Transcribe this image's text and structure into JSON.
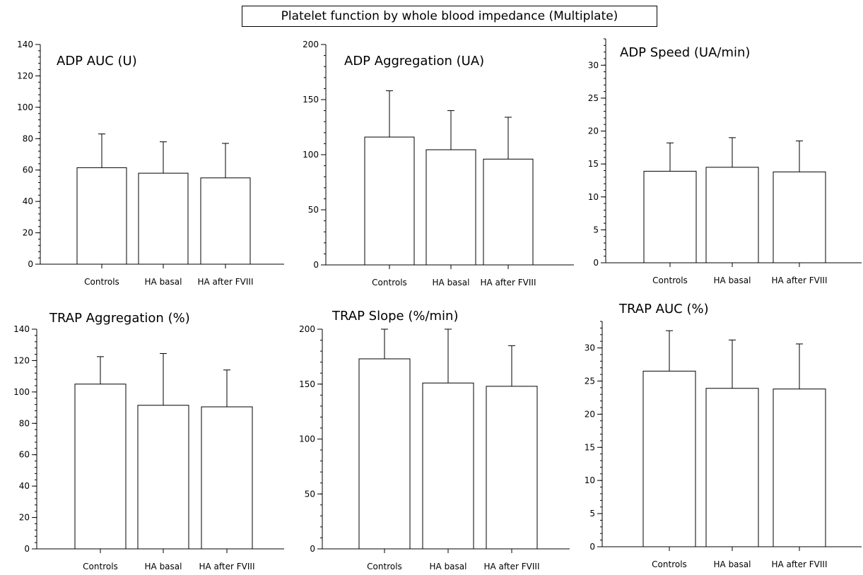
{
  "figure_title": "Platelet function by whole blood impedance (Multiplate)",
  "chart_data": [
    {
      "type": "bar",
      "title": "ADP AUC (U)",
      "categories": [
        "Controls",
        "HA basal",
        "HA after FVIII"
      ],
      "values": [
        61.5,
        58,
        55
      ],
      "error_upper": [
        83,
        78,
        77
      ],
      "ylim": [
        0,
        140
      ],
      "yticks": [
        0,
        20,
        40,
        60,
        80,
        100,
        120,
        140
      ],
      "grid": false
    },
    {
      "type": "bar",
      "title": "ADP Aggregation (UA)",
      "categories": [
        "Controls",
        "HA basal",
        "HA after FVIII"
      ],
      "values": [
        116,
        104.5,
        96
      ],
      "error_upper": [
        158,
        140,
        134
      ],
      "ylim": [
        0,
        200
      ],
      "yticks": [
        0,
        50,
        100,
        150,
        200
      ],
      "grid": false
    },
    {
      "type": "bar",
      "title": "ADP Speed (UA/min)",
      "categories": [
        "Controls",
        "HA basal",
        "HA after FVIII"
      ],
      "values": [
        13.9,
        14.5,
        13.8
      ],
      "error_upper": [
        18.2,
        19,
        18.5
      ],
      "ylim": [
        0,
        34
      ],
      "yticks": [
        0,
        5,
        10,
        15,
        20,
        25,
        30
      ],
      "grid": false
    },
    {
      "type": "bar",
      "title": "TRAP Aggregation (%)",
      "categories": [
        "Controls",
        "HA basal",
        "HA after FVIII"
      ],
      "values": [
        105,
        91.5,
        90.5
      ],
      "error_upper": [
        122.5,
        124.5,
        114
      ],
      "ylim": [
        0,
        140
      ],
      "yticks": [
        0,
        20,
        40,
        60,
        80,
        100,
        120,
        140
      ],
      "grid": false
    },
    {
      "type": "bar",
      "title": "TRAP Slope (%/min)",
      "categories": [
        "Controls",
        "HA basal",
        "HA after FVIII"
      ],
      "values": [
        173,
        151,
        148
      ],
      "error_upper": [
        200,
        200,
        185
      ],
      "ylim": [
        0,
        200
      ],
      "yticks": [
        0,
        50,
        100,
        150,
        200
      ],
      "grid": false
    },
    {
      "type": "bar",
      "title": "TRAP AUC (%)",
      "categories": [
        "Controls",
        "HA basal",
        "HA after FVIII"
      ],
      "values": [
        26.5,
        23.9,
        23.8
      ],
      "error_upper": [
        32.6,
        31.2,
        30.6
      ],
      "ylim": [
        0,
        34
      ],
      "yticks": [
        0,
        5,
        10,
        15,
        20,
        25,
        30
      ],
      "grid": false
    }
  ]
}
